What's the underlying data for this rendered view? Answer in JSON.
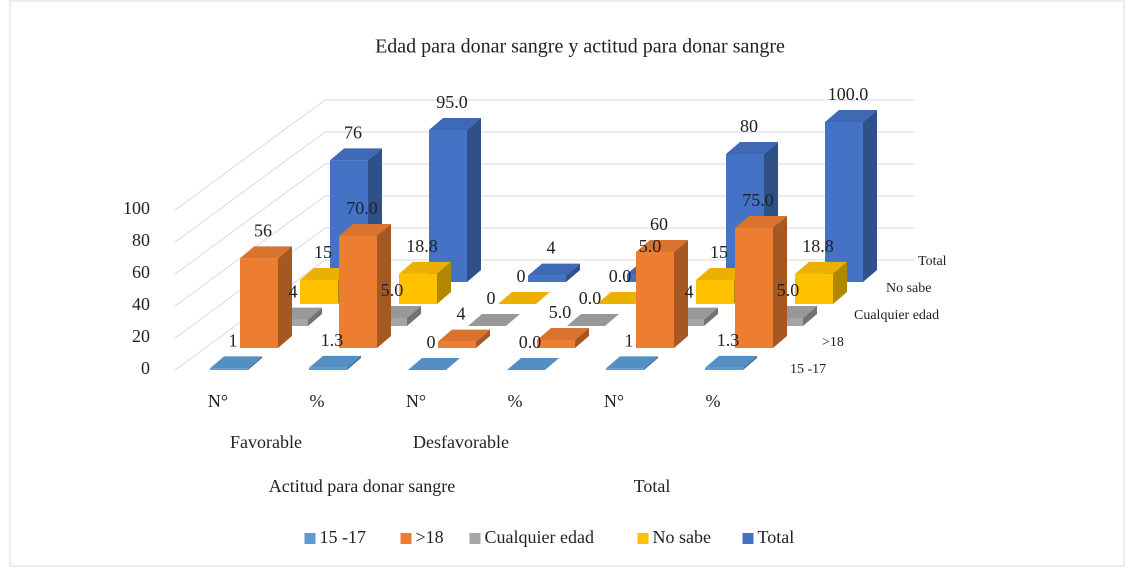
{
  "chart_data": {
    "type": "bar3d",
    "title": "Edad para donar sangre y actitud para donar sangre",
    "categories": [
      "N°",
      "%",
      "N°",
      "%",
      "N°",
      "%"
    ],
    "category_groups": [
      "Favorable",
      "Desfavorable"
    ],
    "category_supergroups": [
      "Actitud para donar sangre",
      "Total"
    ],
    "series": [
      {
        "name": "15 -17",
        "color": "#5b9bd5",
        "values": [
          1,
          1.3,
          0,
          0.0,
          1,
          1.3
        ],
        "value_labels": [
          "1",
          "1.3",
          "0",
          "0.0",
          "1",
          "1.3"
        ]
      },
      {
        "name": ">18",
        "color": "#ed7d31",
        "values": [
          56,
          70.0,
          4,
          5.0,
          60,
          75.0
        ],
        "value_labels": [
          "56",
          "70.0",
          "4",
          "5.0",
          "60",
          "75.0"
        ]
      },
      {
        "name": "Cualquier edad",
        "color": "#a5a5a5",
        "values": [
          4,
          5.0,
          0,
          0.0,
          4,
          5.0
        ],
        "value_labels": [
          "4",
          "5.0",
          "0",
          "0.0",
          "4",
          "5.0"
        ]
      },
      {
        "name": "No sabe",
        "color": "#ffc000",
        "values": [
          15,
          18.8,
          0,
          0.0,
          15,
          18.8
        ],
        "value_labels": [
          "15",
          "18.8",
          "0",
          "0.0",
          "15",
          "18.8"
        ]
      },
      {
        "name": "Total",
        "color": "#4472c4",
        "values": [
          76,
          95.0,
          4,
          5.0,
          80,
          100.0
        ],
        "value_labels": [
          "76",
          "95.0",
          "4",
          "5.0",
          "80",
          "100.0"
        ]
      }
    ],
    "ylim": [
      0,
      100
    ],
    "yticks": [
      0,
      20,
      40,
      60,
      80,
      100
    ],
    "grid": true,
    "legend": "bottom"
  }
}
